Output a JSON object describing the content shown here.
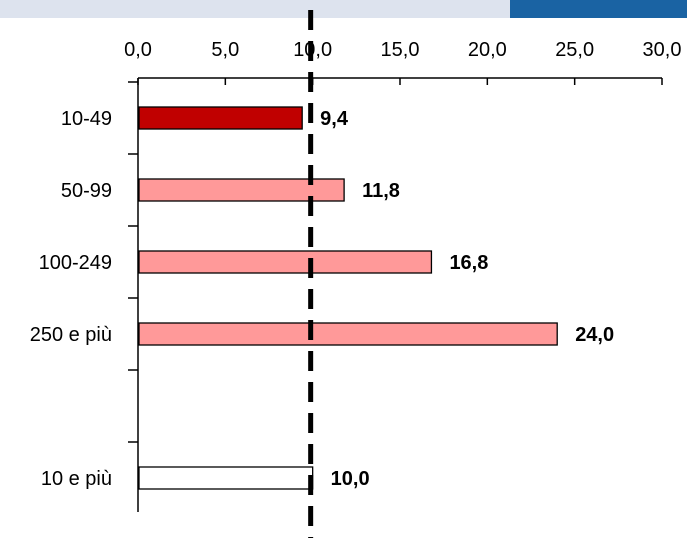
{
  "colors": {
    "band": "#dde3ee",
    "accent": "#1a63a3",
    "bar_highlight": "#c00000",
    "bar_sector": "#ff9999",
    "bar_total": "#ffffff",
    "reference_line": "#000000"
  },
  "chart_data": {
    "type": "bar",
    "orientation": "horizontal",
    "title": "",
    "xlabel": "",
    "ylabel": "",
    "xlim": [
      0,
      30
    ],
    "xticks": [
      "0,0",
      "5,0",
      "10,0",
      "15,0",
      "20,0",
      "25,0",
      "30,0"
    ],
    "xtick_values": [
      0,
      5,
      10,
      15,
      20,
      25,
      30
    ],
    "axis_position": "top",
    "categories": [
      "10-49",
      "50-99",
      "100-249",
      "250 e più",
      "",
      "10 e più"
    ],
    "values": [
      9.4,
      11.8,
      16.8,
      24.0,
      null,
      10.0
    ],
    "value_labels": [
      "9,4",
      "11,8",
      "16,8",
      "24,0",
      "",
      "10,0"
    ],
    "bar_colors": [
      "#c00000",
      "#ff9999",
      "#ff9999",
      "#ff9999",
      null,
      "#ffffff"
    ],
    "reference_line": {
      "value": 10,
      "style": "dashed"
    },
    "grid": false,
    "legend": "none"
  }
}
